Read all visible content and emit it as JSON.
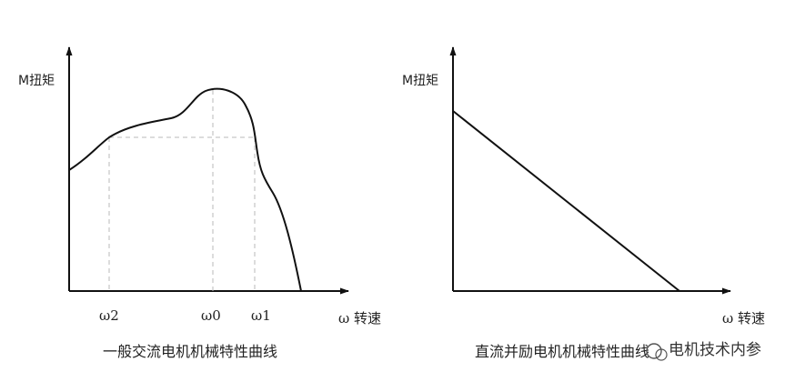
{
  "left_panel": {
    "y_label": "M扭矩",
    "x_label": "ω 转速",
    "caption": "一般交流电机机械特性曲线",
    "ticks": [
      "ω2",
      "ω0",
      "ω1"
    ]
  },
  "right_panel": {
    "y_label": "M扭矩",
    "x_label": "ω 转速",
    "caption": "直流并励电机机械特性曲线"
  },
  "watermark": "电机技术内参",
  "colors": {
    "line": "#111111",
    "dash": "#b8b8b8",
    "text": "#222222"
  }
}
